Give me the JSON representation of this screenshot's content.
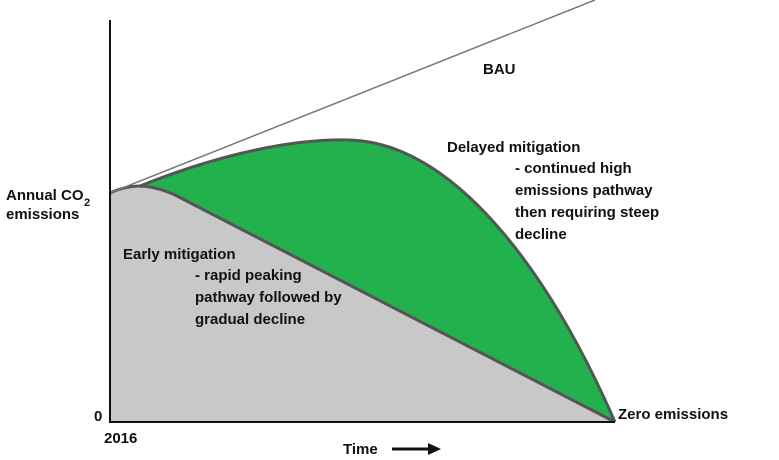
{
  "y_axis": {
    "label": "Annual CO",
    "label_subscript": "2",
    "label_line2": "emissions",
    "origin": "0"
  },
  "x_axis": {
    "start": "2016",
    "label": "Time"
  },
  "curves": [
    {
      "name": "BAU"
    },
    {
      "name": "Delayed mitigation",
      "description": [
        "- continued high",
        "emissions pathway",
        "then requiring steep",
        "decline"
      ]
    },
    {
      "name": "Early mitigation",
      "description": [
        "- rapid peaking",
        "pathway followed by",
        "gradual decline"
      ]
    }
  ],
  "end_label": "Zero emissions"
}
